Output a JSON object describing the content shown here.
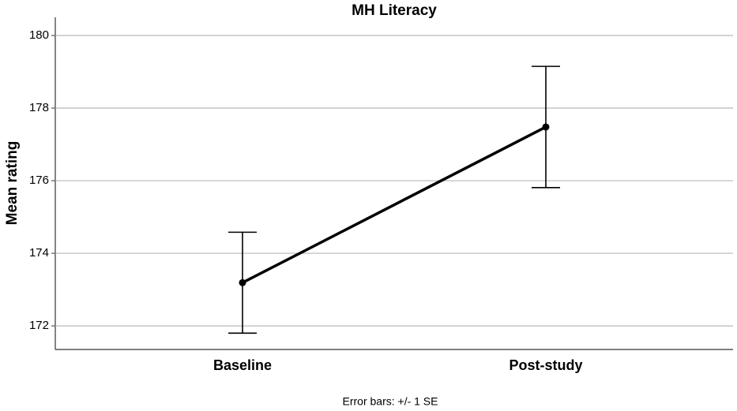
{
  "chart_data": {
    "type": "line",
    "title": "MH Literacy",
    "y_label": "Mean rating",
    "note": "Error bars: +/- 1 SE",
    "categories": [
      "Baseline",
      "Post-study"
    ],
    "values": [
      173.19,
      177.48
    ],
    "errors": [
      1.39,
      1.67
    ],
    "color": "#000000",
    "ylim": [
      171.35,
      180.5
    ],
    "yticks": [
      172,
      174,
      176,
      178,
      180
    ],
    "grid": true
  }
}
